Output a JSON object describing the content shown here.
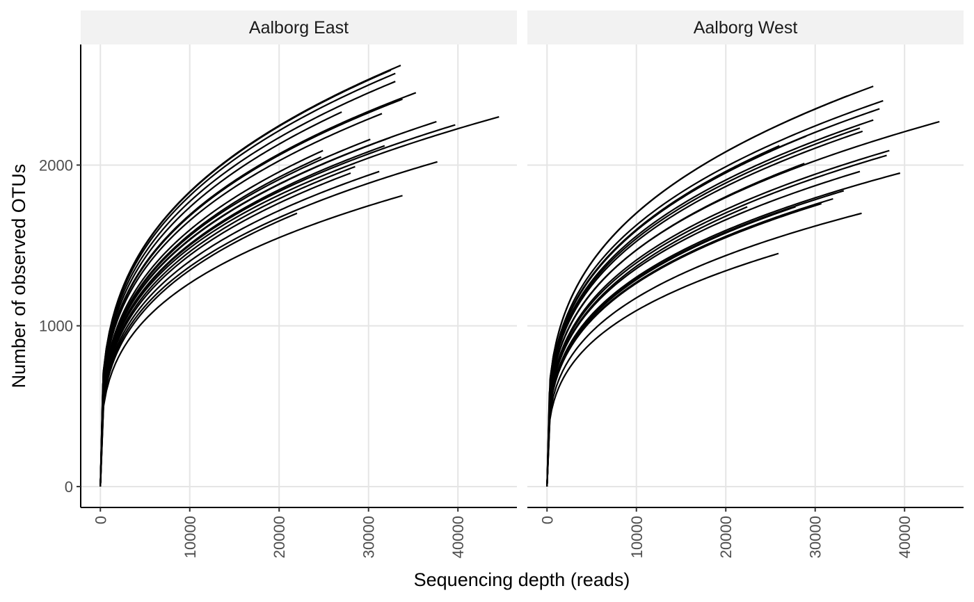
{
  "chart_data": {
    "type": "line",
    "title": "",
    "xlabel": "Sequencing depth (reads)",
    "ylabel": "Number of observed OTUs",
    "xlim": [
      -2200,
      46600
    ],
    "ylim": [
      -130,
      2750
    ],
    "x_ticks": [
      "0",
      "10000",
      "20000",
      "30000",
      "40000"
    ],
    "y_ticks": [
      "0",
      "1000",
      "2000"
    ],
    "grid": true,
    "legend": "none",
    "line_color": "#000000",
    "curve_model": "otus = a * depth^0.5 + b * depth^0.25 (fitted per sample from its end point)",
    "panels": [
      {
        "name": "Aalborg East",
        "series": [
          {
            "end_reads": 33600,
            "end_otus": 2620
          },
          {
            "end_reads": 32500,
            "end_otus": 2590
          },
          {
            "end_reads": 33000,
            "end_otus": 2570
          },
          {
            "end_reads": 33000,
            "end_otus": 2520
          },
          {
            "end_reads": 35300,
            "end_otus": 2450
          },
          {
            "end_reads": 33800,
            "end_otus": 2410
          },
          {
            "end_reads": 33300,
            "end_otus": 2400
          },
          {
            "end_reads": 27000,
            "end_otus": 2330
          },
          {
            "end_reads": 31500,
            "end_otus": 2320
          },
          {
            "end_reads": 44600,
            "end_otus": 2300
          },
          {
            "end_reads": 37600,
            "end_otus": 2270
          },
          {
            "end_reads": 39700,
            "end_otus": 2250
          },
          {
            "end_reads": 32400,
            "end_otus": 2170
          },
          {
            "end_reads": 30200,
            "end_otus": 2160
          },
          {
            "end_reads": 31800,
            "end_otus": 2120
          },
          {
            "end_reads": 24900,
            "end_otus": 2090
          },
          {
            "end_reads": 24700,
            "end_otus": 2050
          },
          {
            "end_reads": 28500,
            "end_otus": 1990
          },
          {
            "end_reads": 37700,
            "end_otus": 2020
          },
          {
            "end_reads": 28000,
            "end_otus": 1950
          },
          {
            "end_reads": 31200,
            "end_otus": 1960
          },
          {
            "end_reads": 22000,
            "end_otus": 1700
          },
          {
            "end_reads": 33800,
            "end_otus": 1810
          }
        ]
      },
      {
        "name": "Aalborg West",
        "series": [
          {
            "end_reads": 36500,
            "end_otus": 2490
          },
          {
            "end_reads": 33600,
            "end_otus": 2430
          },
          {
            "end_reads": 37600,
            "end_otus": 2400
          },
          {
            "end_reads": 37200,
            "end_otus": 2350
          },
          {
            "end_reads": 36500,
            "end_otus": 2280
          },
          {
            "end_reads": 43900,
            "end_otus": 2270
          },
          {
            "end_reads": 35000,
            "end_otus": 2230
          },
          {
            "end_reads": 35300,
            "end_otus": 2210
          },
          {
            "end_reads": 29000,
            "end_otus": 2180
          },
          {
            "end_reads": 26000,
            "end_otus": 2120
          },
          {
            "end_reads": 38300,
            "end_otus": 2090
          },
          {
            "end_reads": 38000,
            "end_otus": 2060
          },
          {
            "end_reads": 28800,
            "end_otus": 2010
          },
          {
            "end_reads": 35000,
            "end_otus": 1960
          },
          {
            "end_reads": 39500,
            "end_otus": 1950
          },
          {
            "end_reads": 33200,
            "end_otus": 1840
          },
          {
            "end_reads": 32000,
            "end_otus": 1790
          },
          {
            "end_reads": 30700,
            "end_otus": 1760
          },
          {
            "end_reads": 27800,
            "end_otus": 1740
          },
          {
            "end_reads": 22400,
            "end_otus": 1740
          },
          {
            "end_reads": 35200,
            "end_otus": 1700
          },
          {
            "end_reads": 25900,
            "end_otus": 1450
          }
        ]
      }
    ]
  }
}
